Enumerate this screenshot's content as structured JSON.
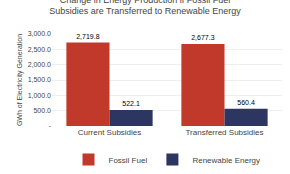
{
  "chart_data": {
    "type": "bar",
    "title": "Change in Energy Production if Fossil Fuel\nSubsidies are Transferred to Renewable Energy",
    "categories": [
      "Current Subsidies",
      "Transferred Subsidies"
    ],
    "series": [
      {
        "name": "Fossil Fuel",
        "color": "#c0392b",
        "values": [
          2719.8,
          2677.3
        ],
        "value_labels": [
          "2,719.8",
          "2,677.3"
        ]
      },
      {
        "name": "Renewable Energy",
        "color": "#2d3561",
        "values": [
          522.1,
          560.4
        ]
      }
    ],
    "ylabel": "GWh of Electricity Generation",
    "ylim": [
      0,
      3000
    ],
    "yticks": [
      {
        "value": 0,
        "label": "-"
      },
      {
        "value": 500,
        "label": "500.0"
      },
      {
        "value": 1000,
        "label": "1,000.0"
      },
      {
        "value": 1500,
        "label": "1,500.0"
      },
      {
        "value": 2000,
        "label": "2,000.0"
      },
      {
        "value": 2500,
        "label": "2,500.0"
      },
      {
        "value": 3000,
        "label": "3,000.0"
      }
    ],
    "grid": true,
    "legend": "bottom",
    "data_labels": true
  }
}
